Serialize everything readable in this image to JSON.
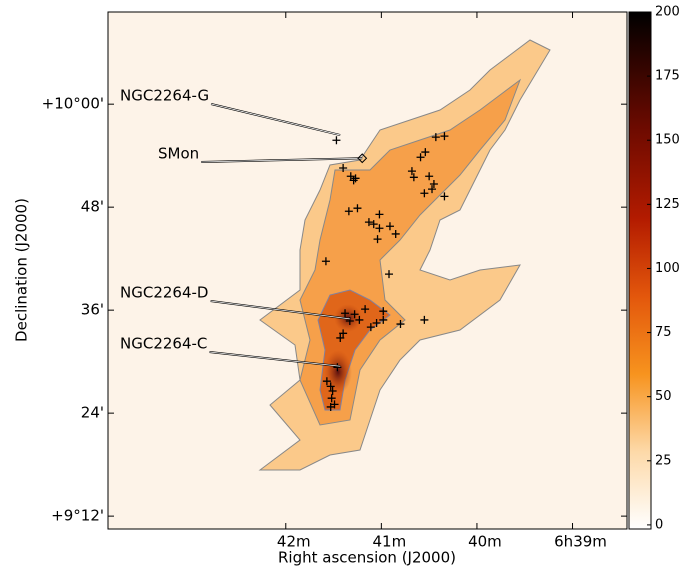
{
  "chart_data": {
    "type": "image",
    "xlabel": "Right ascension (J2000)",
    "ylabel": "Declination (J2000)",
    "xlim": [
      43.86,
      38.43
    ],
    "ylim": [
      9.175,
      10.179
    ],
    "xticks": [
      {
        "value": 42,
        "label": "42m"
      },
      {
        "value": 41,
        "label": "41m"
      },
      {
        "value": 40,
        "label": "40m"
      },
      {
        "value": 39,
        "label": "6h39m"
      }
    ],
    "yticks": [
      {
        "value": 10.0,
        "label": "+10°00'"
      },
      {
        "value": 9.8,
        "label": "48'"
      },
      {
        "value": 9.6,
        "label": "36'"
      },
      {
        "value": 9.4,
        "label": "24'"
      },
      {
        "value": 9.2,
        "label": "+9°12'"
      }
    ],
    "colorbar": {
      "clim": [
        -1.6,
        200
      ],
      "ticks": [
        0,
        25,
        50,
        75,
        100,
        125,
        150,
        175,
        200
      ]
    },
    "sources": {
      "marker": "+",
      "color": "#000000",
      "x": [
        41.47,
        40.43,
        40.34,
        40.54,
        40.59,
        40.68,
        40.66,
        40.5,
        40.45,
        40.55,
        40.47,
        40.34,
        41.4,
        41.32,
        41.29,
        41.27,
        41.34,
        41.25,
        41.13,
        41.08,
        41.02,
        41.02,
        40.91,
        40.85,
        41.04,
        41.58,
        40.92,
        41.38,
        41.28,
        41.17,
        41.33,
        41.23,
        41.05,
        40.98,
        40.98,
        41.11,
        40.8,
        40.55,
        41.4,
        41.43,
        41.46,
        41.57,
        41.53,
        41.51,
        41.52,
        41.49,
        41.53
      ],
      "y": [
        9.93,
        9.936,
        9.938,
        9.907,
        9.897,
        9.87,
        9.858,
        9.86,
        9.845,
        9.827,
        9.835,
        9.821,
        9.876,
        9.86,
        9.852,
        9.856,
        9.792,
        9.798,
        9.771,
        9.767,
        9.786,
        9.759,
        9.763,
        9.748,
        9.738,
        9.695,
        9.67,
        9.594,
        9.592,
        9.602,
        9.579,
        9.581,
        9.575,
        9.598,
        9.581,
        9.567,
        9.573,
        9.581,
        9.555,
        9.546,
        9.489,
        9.462,
        9.452,
        9.443,
        9.429,
        9.417,
        9.412
      ]
    },
    "annotations": [
      {
        "text": "NGC2264-G",
        "x": 41.43,
        "y": 9.94
      },
      {
        "text": "SMon",
        "x": 41.2,
        "y": 9.895
      },
      {
        "text": "NGC2264-D",
        "x": 41.33,
        "y": 9.583
      },
      {
        "text": "NGC2264-C",
        "x": 41.43,
        "y": 9.491
      }
    ]
  }
}
